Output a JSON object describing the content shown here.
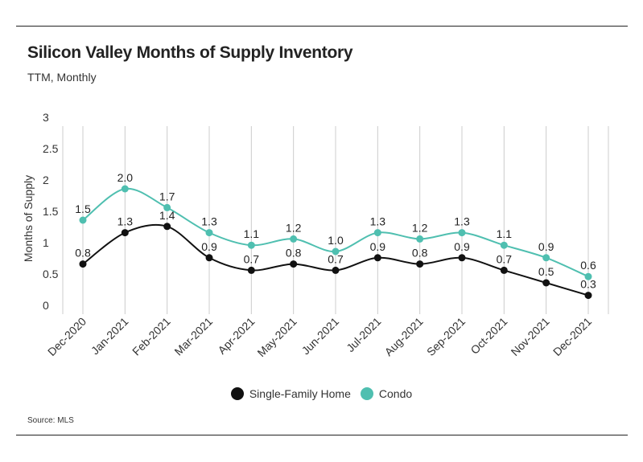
{
  "title": "Silicon Valley Months of Supply Inventory",
  "subtitle": "TTM, Monthly",
  "source": "Source:  MLS",
  "chart_data": {
    "type": "line",
    "ylabel": "Months of Supply",
    "xlabel": "",
    "ylim": [
      0,
      3
    ],
    "yticks": [
      "0",
      "0.5",
      "1",
      "1.5",
      "2",
      "2.5",
      "3"
    ],
    "categories": [
      "Dec-2020",
      "Jan-2021",
      "Feb-2021",
      "Mar-2021",
      "Apr-2021",
      "May-2021",
      "Jun-2021",
      "Jul-2021",
      "Aug-2021",
      "Sep-2021",
      "Oct-2021",
      "Nov-2021",
      "Dec-2021"
    ],
    "grid": true,
    "legend_position": "bottom",
    "series": [
      {
        "name": "Single-Family Home",
        "color": "#111111",
        "values": [
          0.8,
          1.3,
          1.4,
          0.9,
          0.7,
          0.8,
          0.7,
          0.9,
          0.8,
          0.9,
          0.7,
          0.5,
          0.3
        ],
        "labels": [
          "0.8",
          "1.3",
          "1.4",
          "0.9",
          "0.7",
          "0.8",
          "0.7",
          "0.9",
          "0.8",
          "0.9",
          "0.7",
          "0.5",
          "0.3"
        ]
      },
      {
        "name": "Condo",
        "color": "#4fbfb0",
        "values": [
          1.5,
          2.0,
          1.7,
          1.3,
          1.1,
          1.2,
          1.0,
          1.3,
          1.2,
          1.3,
          1.1,
          0.9,
          0.6
        ],
        "labels": [
          "1.5",
          "2.0",
          "1.7",
          "1.3",
          "1.1",
          "1.2",
          "1.0",
          "1.3",
          "1.2",
          "1.3",
          "1.1",
          "0.9",
          "0.6"
        ]
      }
    ]
  }
}
